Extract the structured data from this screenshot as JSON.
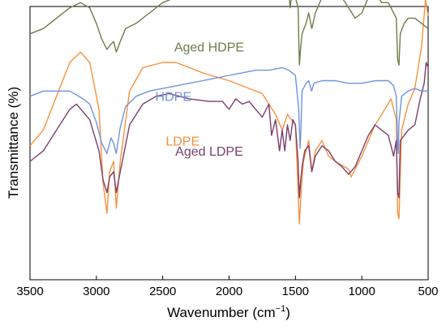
{
  "chart_data": {
    "type": "line",
    "title": "",
    "xlabel": "Wavenumber (cm",
    "xlabel_sup": "−1",
    "xlabel_end": ")",
    "ylabel": "Transmittance (%)",
    "xlim": [
      3500,
      500
    ],
    "x_reversed": true,
    "x_ticks": [
      3500,
      3000,
      2500,
      2000,
      1500,
      1000,
      500
    ],
    "x_tick_labels": [
      "3500",
      "3000",
      "2500",
      "2000",
      "1500",
      "1000",
      "500"
    ],
    "y_ticks_shown": false,
    "grid": false,
    "legend": "inline labels",
    "series": [
      {
        "name": "LDPE",
        "color": "#f5923e",
        "offset_transmittance": 0.15,
        "points": [
          [
            3500,
            0.34
          ],
          [
            3400,
            0.4
          ],
          [
            3300,
            0.53
          ],
          [
            3200,
            0.66
          ],
          [
            3120,
            0.7
          ],
          [
            3050,
            0.66
          ],
          [
            2980,
            0.48
          ],
          [
            2950,
            0.2
          ],
          [
            2920,
            0.08
          ],
          [
            2900,
            0.24
          ],
          [
            2870,
            0.28
          ],
          [
            2850,
            0.1
          ],
          [
            2820,
            0.28
          ],
          [
            2750,
            0.55
          ],
          [
            2650,
            0.64
          ],
          [
            2500,
            0.66
          ],
          [
            2400,
            0.66
          ],
          [
            2200,
            0.62
          ],
          [
            2000,
            0.59
          ],
          [
            1850,
            0.56
          ],
          [
            1750,
            0.54
          ],
          [
            1650,
            0.46
          ],
          [
            1600,
            0.4
          ],
          [
            1560,
            0.46
          ],
          [
            1500,
            0.42
          ],
          [
            1470,
            0.04
          ],
          [
            1455,
            0.18
          ],
          [
            1440,
            0.28
          ],
          [
            1400,
            0.36
          ],
          [
            1377,
            0.24
          ],
          [
            1350,
            0.32
          ],
          [
            1300,
            0.36
          ],
          [
            1250,
            0.3
          ],
          [
            1200,
            0.28
          ],
          [
            1100,
            0.25
          ],
          [
            1080,
            0.22
          ],
          [
            1000,
            0.3
          ],
          [
            950,
            0.36
          ],
          [
            900,
            0.42
          ],
          [
            850,
            0.46
          ],
          [
            780,
            0.52
          ],
          [
            740,
            0.44
          ],
          [
            730,
            0.08
          ],
          [
            720,
            0.06
          ],
          [
            700,
            0.4
          ],
          [
            650,
            0.5
          ],
          [
            600,
            0.56
          ],
          [
            550,
            0.72
          ],
          [
            520,
            0.9
          ],
          [
            500,
            0.84
          ]
        ]
      },
      {
        "name": "Aged LDPE",
        "color": "#7b3f6c",
        "offset_transmittance": 0.41,
        "points": [
          [
            3500,
            0.02
          ],
          [
            3400,
            0.06
          ],
          [
            3300,
            0.14
          ],
          [
            3200,
            0.22
          ],
          [
            3150,
            0.24
          ],
          [
            3050,
            0.18
          ],
          [
            2980,
            0.06
          ],
          [
            2950,
            -0.05
          ],
          [
            2920,
            -0.1
          ],
          [
            2900,
            -0.04
          ],
          [
            2870,
            -0.02
          ],
          [
            2850,
            -0.1
          ],
          [
            2820,
            -0.02
          ],
          [
            2750,
            0.16
          ],
          [
            2650,
            0.24
          ],
          [
            2550,
            0.27
          ],
          [
            2450,
            0.28
          ],
          [
            2300,
            0.26
          ],
          [
            2150,
            0.25
          ],
          [
            2050,
            0.25
          ],
          [
            2000,
            0.22
          ],
          [
            1950,
            0.26
          ],
          [
            1900,
            0.24
          ],
          [
            1850,
            0.25
          ],
          [
            1800,
            0.22
          ],
          [
            1750,
            0.19
          ],
          [
            1700,
            0.24
          ],
          [
            1680,
            0.12
          ],
          [
            1650,
            0.18
          ],
          [
            1620,
            0.06
          ],
          [
            1600,
            0.14
          ],
          [
            1580,
            0.06
          ],
          [
            1560,
            0.16
          ],
          [
            1540,
            0.1
          ],
          [
            1520,
            0.18
          ],
          [
            1500,
            0.16
          ],
          [
            1480,
            0.02
          ],
          [
            1470,
            -0.12
          ],
          [
            1460,
            -0.05
          ],
          [
            1450,
            0.0
          ],
          [
            1430,
            0.06
          ],
          [
            1400,
            0.08
          ],
          [
            1377,
            -0.02
          ],
          [
            1350,
            0.04
          ],
          [
            1300,
            0.08
          ],
          [
            1250,
            0.06
          ],
          [
            1200,
            0.02
          ],
          [
            1150,
            0.0
          ],
          [
            1100,
            -0.03
          ],
          [
            1050,
            0.0
          ],
          [
            1000,
            0.06
          ],
          [
            950,
            0.12
          ],
          [
            900,
            0.16
          ],
          [
            850,
            0.14
          ],
          [
            800,
            0.12
          ],
          [
            760,
            0.04
          ],
          [
            740,
            0.1
          ],
          [
            730,
            -0.1
          ],
          [
            720,
            -0.12
          ],
          [
            710,
            0.1
          ],
          [
            680,
            0.12
          ],
          [
            650,
            0.14
          ],
          [
            600,
            0.16
          ],
          [
            560,
            0.26
          ],
          [
            530,
            0.32
          ],
          [
            515,
            0.4
          ],
          [
            500,
            0.38
          ]
        ]
      },
      {
        "name": "HDPE",
        "color": "#6f93e0",
        "offset_transmittance": 0.68,
        "points": [
          [
            3500,
            0.0
          ],
          [
            3400,
            0.02
          ],
          [
            3300,
            0.02
          ],
          [
            3200,
            0.02
          ],
          [
            3100,
            -0.01
          ],
          [
            3050,
            -0.03
          ],
          [
            3000,
            -0.1
          ],
          [
            2960,
            -0.18
          ],
          [
            2920,
            -0.22
          ],
          [
            2890,
            -0.16
          ],
          [
            2870,
            -0.18
          ],
          [
            2850,
            -0.22
          ],
          [
            2820,
            -0.12
          ],
          [
            2780,
            -0.04
          ],
          [
            2700,
            0.0
          ],
          [
            2600,
            0.02
          ],
          [
            2500,
            0.03
          ],
          [
            2400,
            0.04
          ],
          [
            2300,
            0.05
          ],
          [
            2200,
            0.06
          ],
          [
            2100,
            0.07
          ],
          [
            2000,
            0.08
          ],
          [
            1900,
            0.09
          ],
          [
            1800,
            0.1
          ],
          [
            1700,
            0.1
          ],
          [
            1600,
            0.11
          ],
          [
            1550,
            0.1
          ],
          [
            1500,
            0.08
          ],
          [
            1475,
            -0.05
          ],
          [
            1465,
            -0.2
          ],
          [
            1458,
            -0.12
          ],
          [
            1450,
            0.02
          ],
          [
            1420,
            0.05
          ],
          [
            1400,
            0.06
          ],
          [
            1378,
            0.02
          ],
          [
            1360,
            0.05
          ],
          [
            1300,
            0.06
          ],
          [
            1200,
            0.06
          ],
          [
            1100,
            0.05
          ],
          [
            1000,
            0.05
          ],
          [
            900,
            0.06
          ],
          [
            800,
            0.06
          ],
          [
            760,
            0.04
          ],
          [
            740,
            0.0
          ],
          [
            730,
            -0.18
          ],
          [
            725,
            -0.22
          ],
          [
            720,
            -0.1
          ],
          [
            700,
            0.0
          ],
          [
            650,
            0.02
          ],
          [
            600,
            0.03
          ],
          [
            550,
            0.02
          ],
          [
            500,
            0.02
          ]
        ]
      },
      {
        "name": "Aged HDPE",
        "color": "#6b7e48",
        "offset_transmittance": 0.92,
        "points": [
          [
            3500,
            0.0
          ],
          [
            3400,
            0.02
          ],
          [
            3300,
            0.06
          ],
          [
            3200,
            0.1
          ],
          [
            3120,
            0.12
          ],
          [
            3050,
            0.1
          ],
          [
            3000,
            0.04
          ],
          [
            2960,
            -0.02
          ],
          [
            2920,
            -0.06
          ],
          [
            2890,
            -0.04
          ],
          [
            2870,
            -0.03
          ],
          [
            2850,
            -0.07
          ],
          [
            2820,
            -0.03
          ],
          [
            2780,
            0.02
          ],
          [
            2700,
            0.04
          ],
          [
            2600,
            0.08
          ],
          [
            2500,
            0.12
          ],
          [
            2400,
            0.14
          ],
          [
            2300,
            0.16
          ],
          [
            2200,
            0.18
          ],
          [
            2100,
            0.18
          ],
          [
            2000,
            0.16
          ],
          [
            1950,
            0.18
          ],
          [
            1900,
            0.17
          ],
          [
            1850,
            0.18
          ],
          [
            1800,
            0.2
          ],
          [
            1750,
            0.18
          ],
          [
            1720,
            0.25
          ],
          [
            1700,
            0.16
          ],
          [
            1680,
            0.24
          ],
          [
            1660,
            0.16
          ],
          [
            1640,
            0.24
          ],
          [
            1620,
            0.16
          ],
          [
            1600,
            0.26
          ],
          [
            1580,
            0.14
          ],
          [
            1560,
            0.22
          ],
          [
            1540,
            0.1
          ],
          [
            1520,
            0.18
          ],
          [
            1500,
            0.14
          ],
          [
            1480,
            0.1
          ],
          [
            1470,
            -0.12
          ],
          [
            1460,
            -0.05
          ],
          [
            1450,
            0.0
          ],
          [
            1420,
            0.04
          ],
          [
            1400,
            0.08
          ],
          [
            1377,
            0.02
          ],
          [
            1350,
            0.08
          ],
          [
            1300,
            0.14
          ],
          [
            1250,
            0.16
          ],
          [
            1200,
            0.16
          ],
          [
            1150,
            0.14
          ],
          [
            1100,
            0.1
          ],
          [
            1050,
            0.06
          ],
          [
            1000,
            0.08
          ],
          [
            950,
            0.14
          ],
          [
            900,
            0.16
          ],
          [
            850,
            0.12
          ],
          [
            800,
            0.12
          ],
          [
            760,
            0.08
          ],
          [
            740,
            0.06
          ],
          [
            730,
            -0.1
          ],
          [
            720,
            -0.12
          ],
          [
            710,
            0.0
          ],
          [
            680,
            0.04
          ],
          [
            650,
            0.06
          ],
          [
            600,
            0.06
          ],
          [
            550,
            0.04
          ],
          [
            500,
            0.02
          ]
        ]
      }
    ]
  }
}
